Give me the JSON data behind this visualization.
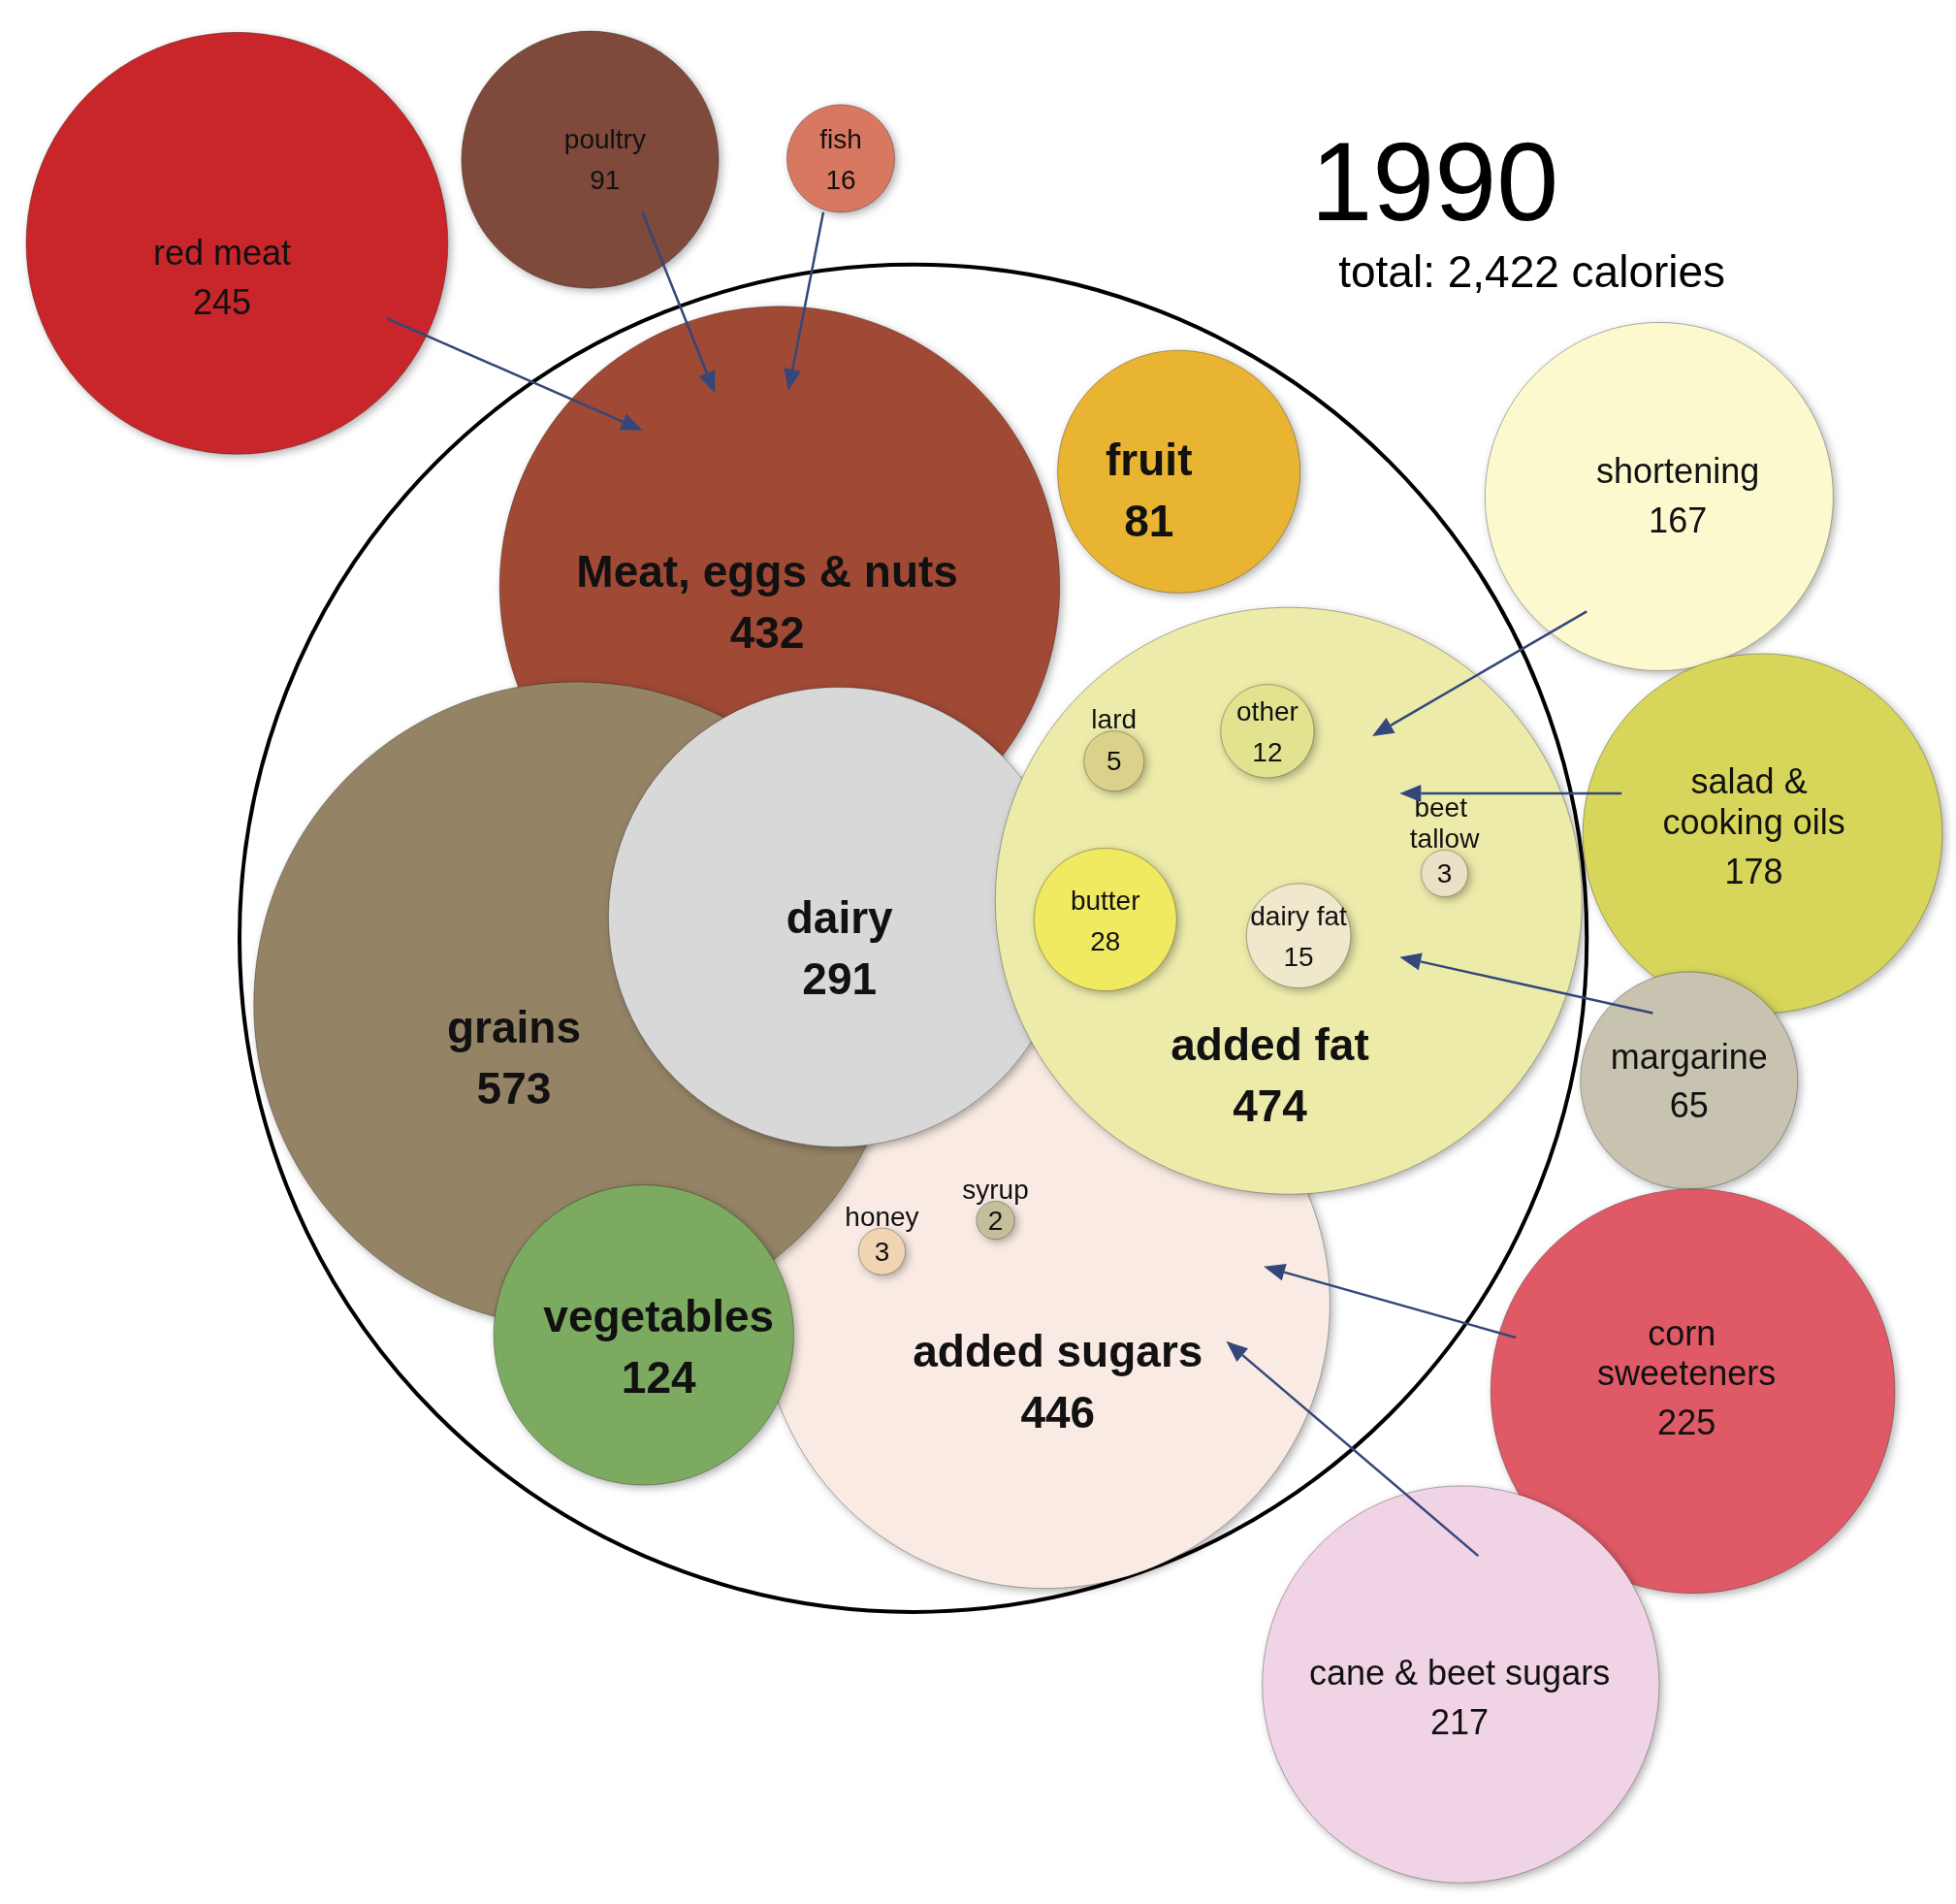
{
  "chart_data": {
    "type": "other",
    "data_labels": true,
    "title": "1990",
    "subtitle": "total: 2,422 calories",
    "categories": [
      "red meat",
      "poultry",
      "fish",
      "Meat, eggs & nuts",
      "fruit",
      "grains",
      "dairy",
      "added fat",
      "lard",
      "other",
      "beet tallow",
      "butter",
      "dairy fat",
      "added sugars",
      "honey",
      "syrup",
      "vegetables",
      "shortening",
      "salad & cooking oils",
      "margarine",
      "corn sweeteners",
      "cane & beet sugars"
    ],
    "values": [
      245,
      91,
      16,
      432,
      81,
      573,
      291,
      474,
      5,
      12,
      3,
      28,
      15,
      446,
      3,
      2,
      124,
      167,
      178,
      65,
      225,
      217
    ],
    "colors": [
      "#c8282a",
      "#7f4a3a",
      "#d97860",
      "#a04835",
      "#e9b430",
      "#958366",
      "#d8d8d8",
      "#ecebaa",
      "#dbd18a",
      "#e1e38f",
      "#ebe0c6",
      "#f0e962",
      "#efe8cc",
      "#f9ebe3",
      "#f0d4b4",
      "#c4bf9b",
      "#7caa60",
      "#fcf9cf",
      "#d7d65a",
      "#c8c3b0",
      "#df5a66",
      "#f0d3e5"
    ]
  }
}
